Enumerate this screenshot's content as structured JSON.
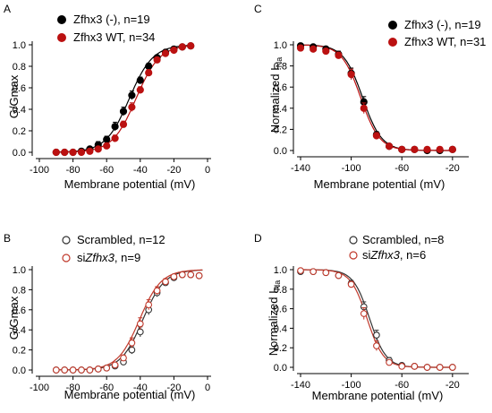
{
  "chart_data": [
    {
      "panel_label": "A",
      "type": "scatter",
      "xlabel": "Membrane potential (mV)",
      "ylabel": "G/Gmax",
      "ylabel_sub": "",
      "xlim": [
        -100,
        0
      ],
      "ylim": [
        0,
        1.0
      ],
      "x_ticks": [
        -100,
        -80,
        -60,
        -40,
        -20,
        0
      ],
      "y_ticks": [
        "0.0",
        "0.2",
        "0.4",
        "0.6",
        "0.8",
        "1.0"
      ],
      "legend_position": "top-left",
      "series": [
        {
          "name": "Zfhx3 (-), n=19",
          "name_italic": "",
          "name_suffix": "",
          "color": "#000000",
          "marker": "filled",
          "x": [
            -90,
            -85,
            -80,
            -75,
            -70,
            -65,
            -60,
            -55,
            -50,
            -45,
            -40,
            -35,
            -30,
            -25,
            -20,
            -15,
            -10
          ],
          "y": [
            0,
            0,
            0,
            0.01,
            0.03,
            0.07,
            0.12,
            0.24,
            0.38,
            0.53,
            0.67,
            0.8,
            0.88,
            0.93,
            0.96,
            0.98,
            0.99
          ],
          "err": [
            0.01,
            0.01,
            0.01,
            0.01,
            0.02,
            0.03,
            0.03,
            0.04,
            0.04,
            0.04,
            0.03,
            0.03,
            0.02,
            0.02,
            0.01,
            0.01,
            0.01
          ]
        },
        {
          "name": "Zfhx3 WT, n=34",
          "name_italic": "",
          "name_suffix": "",
          "color": "#bb1111",
          "marker": "filled",
          "x": [
            -90,
            -85,
            -80,
            -75,
            -70,
            -65,
            -60,
            -55,
            -50,
            -45,
            -40,
            -35,
            -30,
            -25,
            -20,
            -15,
            -10
          ],
          "y": [
            0,
            0,
            0,
            0,
            0.01,
            0.03,
            0.06,
            0.13,
            0.26,
            0.42,
            0.58,
            0.74,
            0.86,
            0.92,
            0.95,
            0.98,
            0.99
          ],
          "err": [
            0.01,
            0.01,
            0.01,
            0.01,
            0.01,
            0.02,
            0.02,
            0.03,
            0.03,
            0.04,
            0.03,
            0.03,
            0.02,
            0.02,
            0.01,
            0.01,
            0.01
          ]
        }
      ],
      "fit_v_half": [
        -46.5,
        -42.5
      ],
      "fit_slope": 7
    },
    {
      "panel_label": "C",
      "type": "scatter",
      "xlabel": "Membrane potential (mV)",
      "ylabel": "Normalized I",
      "ylabel_sub": "Na",
      "xlim": [
        -140,
        -10
      ],
      "ylim": [
        0,
        1.0
      ],
      "x_ticks": [
        -140,
        -100,
        -60,
        -20
      ],
      "y_ticks": [
        "0.0",
        "0.2",
        "0.4",
        "0.6",
        "0.8",
        "1.0"
      ],
      "legend_position": "top-right",
      "series": [
        {
          "name": "Zfhx3 (-), n=19",
          "name_italic": "",
          "name_suffix": "",
          "color": "#000000",
          "marker": "filled",
          "x": [
            -140,
            -130,
            -120,
            -110,
            -100,
            -90,
            -80,
            -70,
            -60,
            -50,
            -40,
            -30,
            -20
          ],
          "y": [
            0.99,
            0.98,
            0.96,
            0.91,
            0.73,
            0.46,
            0.15,
            0.04,
            0.01,
            0.01,
            0,
            0,
            0.01
          ],
          "err": [
            0.02,
            0.02,
            0.02,
            0.03,
            0.05,
            0.05,
            0.03,
            0.02,
            0.01,
            0.01,
            0.01,
            0.01,
            0.01
          ]
        },
        {
          "name": "Zfhx3 WT, n=31",
          "name_italic": "",
          "name_suffix": "",
          "color": "#bb1111",
          "marker": "filled",
          "x": [
            -140,
            -130,
            -120,
            -110,
            -100,
            -90,
            -80,
            -70,
            -60,
            -50,
            -40,
            -30,
            -20
          ],
          "y": [
            0.97,
            0.96,
            0.94,
            0.9,
            0.72,
            0.4,
            0.14,
            0.04,
            0.01,
            0.01,
            0.01,
            0.01,
            0.01
          ],
          "err": [
            0.02,
            0.02,
            0.02,
            0.03,
            0.05,
            0.05,
            0.03,
            0.02,
            0.01,
            0.01,
            0.01,
            0.01,
            0.01
          ]
        }
      ],
      "fit_v_half": [
        -91,
        -92.5
      ],
      "fit_slope": -7.5
    },
    {
      "panel_label": "B",
      "type": "scatter",
      "xlabel": "Membrane potential (mV)",
      "ylabel": "G/Gmax",
      "ylabel_sub": "",
      "xlim": [
        -100,
        0
      ],
      "ylim": [
        0,
        1.0
      ],
      "x_ticks": [
        -100,
        -80,
        -60,
        -40,
        -20,
        0
      ],
      "y_ticks": [
        "0.0",
        "0.2",
        "0.4",
        "0.6",
        "0.8",
        "1.0"
      ],
      "legend_position": "top",
      "series": [
        {
          "name": "Scrambled, n=12",
          "name_italic": "",
          "name_suffix": "",
          "color": "#333333",
          "marker": "open",
          "x": [
            -90,
            -85,
            -80,
            -75,
            -70,
            -65,
            -60,
            -55,
            -50,
            -45,
            -40,
            -35,
            -30,
            -25,
            -20,
            -15,
            -10,
            -5
          ],
          "y": [
            0,
            0,
            0,
            0,
            0,
            0.01,
            0.02,
            0.04,
            0.08,
            0.2,
            0.38,
            0.6,
            0.77,
            0.87,
            0.92,
            0.95,
            0.95,
            0.94
          ],
          "err": [
            0.01,
            0.01,
            0.01,
            0.01,
            0.01,
            0.01,
            0.01,
            0.02,
            0.03,
            0.04,
            0.05,
            0.05,
            0.04,
            0.03,
            0.02,
            0.02,
            0.02,
            0.01
          ]
        },
        {
          "name": "si",
          "name_italic": "Zfhx3",
          "name_suffix": ", n=9",
          "color": "#c0392b",
          "marker": "open",
          "x": [
            -90,
            -85,
            -80,
            -75,
            -70,
            -65,
            -60,
            -55,
            -50,
            -45,
            -40,
            -35,
            -30,
            -25,
            -20,
            -15,
            -10,
            -5
          ],
          "y": [
            0,
            0,
            0,
            0,
            0,
            0.01,
            0.02,
            0.05,
            0.12,
            0.27,
            0.46,
            0.65,
            0.79,
            0.88,
            0.93,
            0.95,
            0.95,
            0.94
          ],
          "err": [
            0.01,
            0.01,
            0.01,
            0.01,
            0.01,
            0.01,
            0.01,
            0.02,
            0.03,
            0.05,
            0.06,
            0.05,
            0.04,
            0.03,
            0.02,
            0.02,
            0.02,
            0.01
          ]
        }
      ],
      "fit_v_half": [
        -38.5,
        -40.5
      ],
      "fit_slope": 6.5
    },
    {
      "panel_label": "D",
      "type": "scatter",
      "xlabel": "Membrane potential (mV)",
      "ylabel": "Normalized I",
      "ylabel_sub": "Na",
      "xlim": [
        -140,
        -10
      ],
      "ylim": [
        0,
        1.0
      ],
      "x_ticks": [
        -140,
        -100,
        -60,
        -20
      ],
      "y_ticks": [
        "0.0",
        "0.2",
        "0.4",
        "0.6",
        "0.8",
        "1.0"
      ],
      "legend_position": "top",
      "series": [
        {
          "name": "Scrambled, n=8",
          "name_italic": "",
          "name_suffix": "",
          "color": "#333333",
          "marker": "open",
          "x": [
            -140,
            -130,
            -120,
            -110,
            -100,
            -90,
            -80,
            -70,
            -60,
            -50,
            -40,
            -30,
            -20
          ],
          "y": [
            0.98,
            0.98,
            0.97,
            0.94,
            0.86,
            0.62,
            0.33,
            0.07,
            0.02,
            0.01,
            0,
            0,
            0
          ],
          "err": [
            0.01,
            0.01,
            0.02,
            0.02,
            0.03,
            0.05,
            0.05,
            0.03,
            0.01,
            0.01,
            0.01,
            0.01,
            0.01
          ]
        },
        {
          "name": "si",
          "name_italic": "Zfhx3",
          "name_suffix": ", n=6",
          "color": "#c0392b",
          "marker": "open",
          "x": [
            -140,
            -130,
            -120,
            -110,
            -100,
            -90,
            -80,
            -70,
            -60,
            -50,
            -40,
            -30,
            -20
          ],
          "y": [
            0.99,
            0.98,
            0.97,
            0.94,
            0.85,
            0.55,
            0.22,
            0.05,
            0.01,
            0.01,
            0,
            0,
            0
          ],
          "err": [
            0.01,
            0.01,
            0.02,
            0.02,
            0.03,
            0.06,
            0.05,
            0.02,
            0.01,
            0.01,
            0.01,
            0.01,
            0.01
          ]
        }
      ],
      "fit_v_half": [
        -85.5,
        -87.5
      ],
      "fit_slope": -6.5
    }
  ]
}
